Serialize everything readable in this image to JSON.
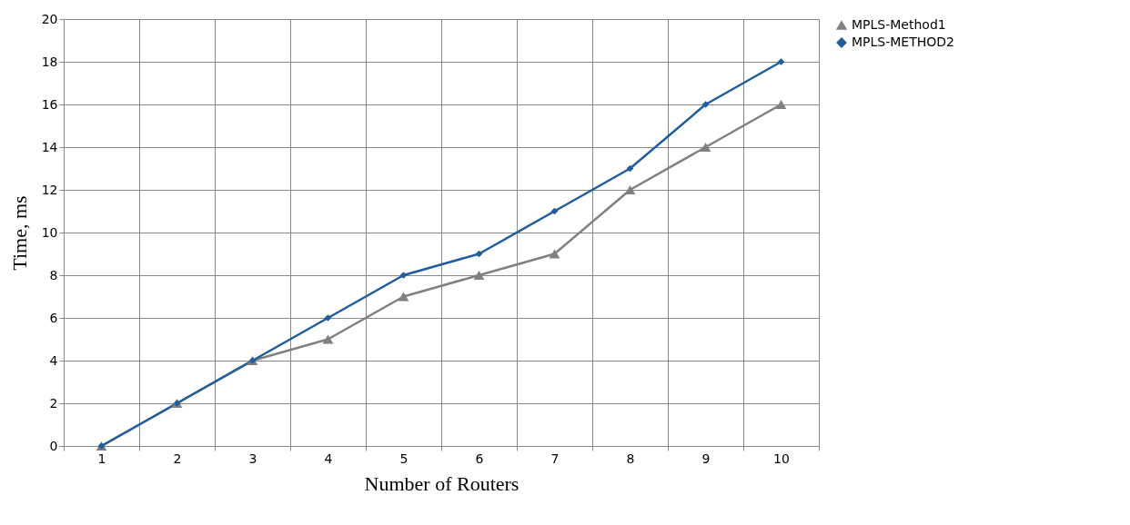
{
  "chart_data": {
    "type": "line",
    "xlabel": "Number of Routers",
    "ylabel": "Time, ms",
    "categories": [
      "1",
      "2",
      "3",
      "4",
      "5",
      "6",
      "7",
      "8",
      "9",
      "10"
    ],
    "series": [
      {
        "name": "MPLS-Method1",
        "color": "#808080",
        "marker": "triangle",
        "values": [
          0,
          2,
          4,
          5,
          7,
          8,
          9,
          12,
          14,
          16
        ]
      },
      {
        "name": "MPLS-METHOD2",
        "color": "#1f5d9c",
        "marker": "diamond",
        "values": [
          0,
          2,
          4,
          6,
          8,
          9,
          11,
          13,
          16,
          18
        ]
      }
    ],
    "ylim": [
      0,
      20
    ],
    "yticks": [
      0,
      2,
      4,
      6,
      8,
      10,
      12,
      14,
      16,
      18,
      20
    ],
    "grid": true,
    "legend": "right",
    "line_style": "solid"
  }
}
